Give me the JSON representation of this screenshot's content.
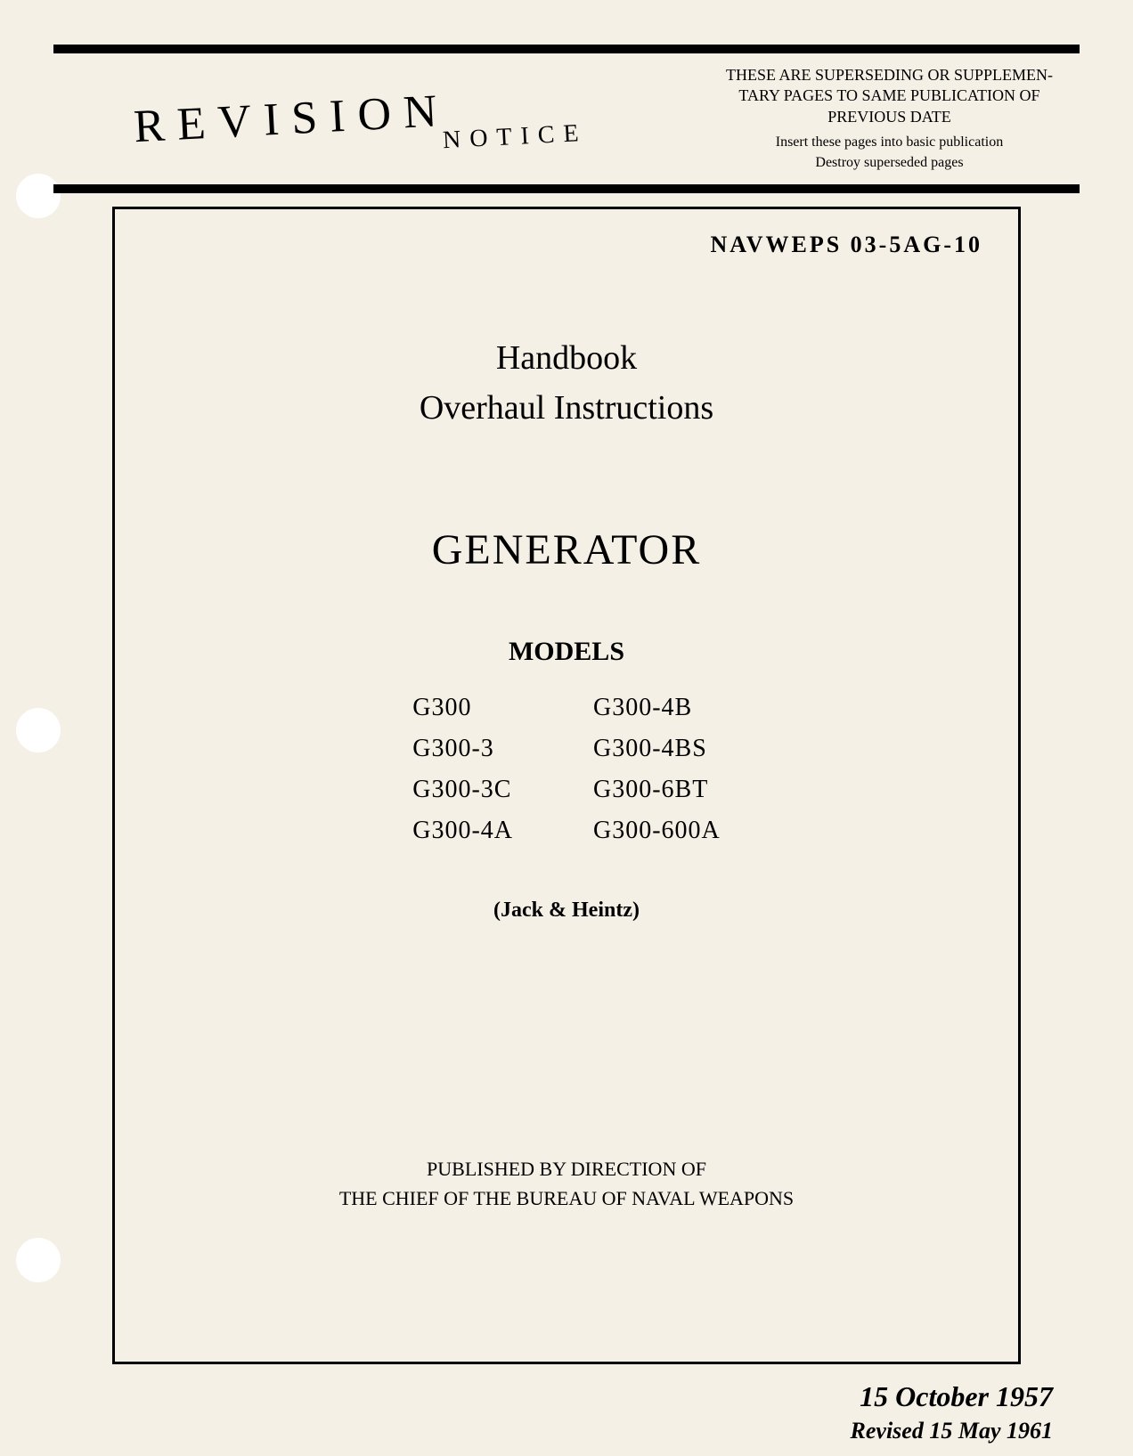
{
  "header": {
    "revision_label": "REVISION",
    "notice_label": "NOTICE",
    "supersede_line1": "THESE ARE SUPERSEDING OR SUPPLEMEN-",
    "supersede_line2": "TARY PAGES TO SAME PUBLICATION OF",
    "supersede_line3": "PREVIOUS DATE",
    "insert_line1": "Insert these pages into basic publication",
    "insert_line2": "Destroy superseded pages"
  },
  "document": {
    "doc_number": "NAVWEPS 03-5AG-10",
    "handbook_label": "Handbook",
    "instructions_label": "Overhaul Instructions",
    "subject": "GENERATOR",
    "models_label": "MODELS",
    "manufacturer": "(Jack & Heintz)",
    "publisher_line1": "PUBLISHED BY DIRECTION OF",
    "publisher_line2": "THE CHIEF OF THE BUREAU OF NAVAL WEAPONS"
  },
  "models": {
    "left": [
      "G300",
      "G300-3",
      "G300-3C",
      "G300-4A"
    ],
    "right": [
      "G300-4B",
      "G300-4BS",
      "G300-6BT",
      "G300-600A"
    ]
  },
  "dates": {
    "original": "15 October 1957",
    "revised": "Revised 15 May 1961"
  },
  "colors": {
    "background": "#f5f0e6",
    "text": "#000000",
    "border": "#000000",
    "hole": "#ffffff"
  }
}
